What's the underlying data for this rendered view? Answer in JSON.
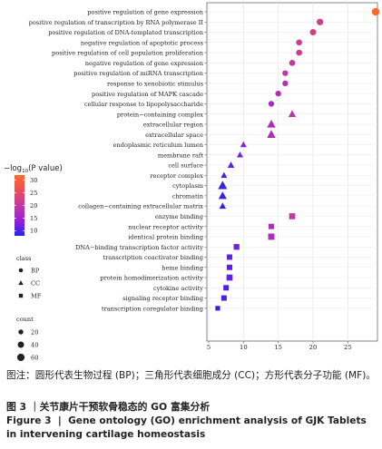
{
  "chart_data": {
    "type": "scatter",
    "xlim": [
      5,
      29
    ],
    "xticks": [
      5,
      10,
      15,
      20,
      25
    ],
    "grid": true,
    "legend_placement": "left",
    "terms": [
      {
        "label": "positive regulation of gene expression",
        "x": 29,
        "p": 32,
        "count": 65,
        "class": "BP"
      },
      {
        "label": "positive regulation of transcription by RNA polymerase II",
        "x": 21,
        "p": 22,
        "count": 45,
        "class": "BP"
      },
      {
        "label": "positive regulation of DNA-templated transcription",
        "x": 20,
        "p": 22,
        "count": 40,
        "class": "BP"
      },
      {
        "label": "negative regulation of apoptotic process",
        "x": 18,
        "p": 21,
        "count": 35,
        "class": "BP"
      },
      {
        "label": "positive regulation of cell population proliferation",
        "x": 18,
        "p": 21,
        "count": 35,
        "class": "BP"
      },
      {
        "label": "negative regulation of gene expression",
        "x": 17,
        "p": 20,
        "count": 35,
        "class": "BP"
      },
      {
        "label": "positive regulation of miRNA transcription",
        "x": 16,
        "p": 19,
        "count": 30,
        "class": "BP"
      },
      {
        "label": "response to xenobiotic stimulus",
        "x": 16,
        "p": 18,
        "count": 30,
        "class": "BP"
      },
      {
        "label": "positive regulation of MAPK cascade",
        "x": 15,
        "p": 17,
        "count": 30,
        "class": "BP"
      },
      {
        "label": "cellular response to lipopolysaccharide",
        "x": 14,
        "p": 16,
        "count": 30,
        "class": "BP"
      },
      {
        "label": "protein−containing complex",
        "x": 17,
        "p": 19,
        "count": 40,
        "class": "CC"
      },
      {
        "label": "extracellular region",
        "x": 14,
        "p": 17,
        "count": 55,
        "class": "CC"
      },
      {
        "label": "extracellular space",
        "x": 14,
        "p": 17,
        "count": 55,
        "class": "CC"
      },
      {
        "label": "endoplasmic reticulum lumen",
        "x": 10,
        "p": 13,
        "count": 25,
        "class": "CC"
      },
      {
        "label": "membrane raft",
        "x": 9.5,
        "p": 12,
        "count": 25,
        "class": "CC"
      },
      {
        "label": "cell surface",
        "x": 8.2,
        "p": 11,
        "count": 30,
        "class": "CC"
      },
      {
        "label": "receptor complex",
        "x": 7.2,
        "p": 10,
        "count": 25,
        "class": "CC"
      },
      {
        "label": "cytoplasm",
        "x": 7,
        "p": 9,
        "count": 65,
        "class": "CC"
      },
      {
        "label": "chromatin",
        "x": 7,
        "p": 9,
        "count": 50,
        "class": "CC"
      },
      {
        "label": "collagen−containing extracellular matrix",
        "x": 7,
        "p": 9,
        "count": 30,
        "class": "CC"
      },
      {
        "label": "enzyme binding",
        "x": 17,
        "p": 20,
        "count": 40,
        "class": "MF"
      },
      {
        "label": "nuclear receptor activity",
        "x": 14,
        "p": 17,
        "count": 30,
        "class": "MF"
      },
      {
        "label": "identical protein binding",
        "x": 14,
        "p": 17,
        "count": 45,
        "class": "MF"
      },
      {
        "label": "DNA−binding transcription factor activity",
        "x": 9,
        "p": 12,
        "count": 35,
        "class": "MF"
      },
      {
        "label": "transcription coactivator binding",
        "x": 8,
        "p": 11,
        "count": 30,
        "class": "MF"
      },
      {
        "label": "heme binding",
        "x": 8,
        "p": 11,
        "count": 30,
        "class": "MF"
      },
      {
        "label": "protein homodimerization activity",
        "x": 8,
        "p": 11,
        "count": 40,
        "class": "MF"
      },
      {
        "label": "cytokine activity",
        "x": 7.5,
        "p": 10,
        "count": 30,
        "class": "MF"
      },
      {
        "label": "signaling receptor binding",
        "x": 7.2,
        "p": 10,
        "count": 30,
        "class": "MF"
      },
      {
        "label": "transcription coregulator binding",
        "x": 6.3,
        "p": 9,
        "count": 20,
        "class": "MF"
      }
    ],
    "color_legend": {
      "title_prefix": "−log",
      "title_sub": "10",
      "title_suffix": "(P value)",
      "ticks": [
        30,
        25,
        20,
        15,
        10
      ],
      "range": [
        8,
        32
      ],
      "colors": [
        "#2424e6",
        "#9b1fd8",
        "#c23aa0",
        "#e74f5a",
        "#ff6a2a"
      ]
    },
    "shape_legend": {
      "title": "class",
      "items": [
        {
          "name": "BP",
          "shape": "circle"
        },
        {
          "name": "CC",
          "shape": "triangle"
        },
        {
          "name": "MF",
          "shape": "square"
        }
      ]
    },
    "size_legend": {
      "title": "count",
      "values": [
        20,
        40,
        60
      ]
    }
  },
  "captions": {
    "note": "图注：圆形代表生物过程 (BP)；三角形代表细胞成分 (CC)；方形代表分子功能 (MF)。",
    "title_cn": "图 3 ｜关节康片干预软骨稳态的 GO 富集分析",
    "title_en": "Figure 3  |  Gene ontology (GO) enrichment analysis of GJK Tablets in intervening cartilage homeostasis"
  }
}
